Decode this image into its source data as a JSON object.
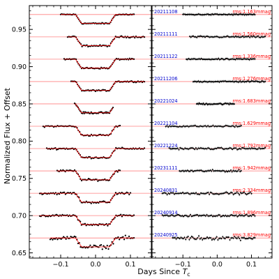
{
  "chart_data": {
    "type": "scatter",
    "ylabel": "Normalized Flux + Offset",
    "xlabel_text": "Days Since ",
    "xlabel_var": "T",
    "xlabel_sub": "c",
    "ylim": [
      0.643,
      0.982
    ],
    "left_panel": {
      "xlim": [
        -0.19,
        0.16
      ],
      "xticks": [
        -0.1,
        0.0,
        0.1
      ],
      "xtick_labels": [
        "−0.1",
        "0.0",
        "0.1"
      ]
    },
    "right_panel": {
      "xlim": [
        -0.19,
        0.16
      ],
      "xticks": [
        -0.1,
        0.0,
        0.1
      ],
      "xtick_labels": [
        "−0.1",
        "0.0",
        "0.1"
      ]
    },
    "yticks": [
      0.65,
      0.7,
      0.75,
      0.8,
      0.85,
      0.9,
      0.95
    ],
    "ytick_labels": [
      "0.65",
      "0.70",
      "0.75",
      "0.80",
      "0.85",
      "0.90",
      "0.95"
    ],
    "transit_depth": 0.012,
    "model_line_color": "#ff0000",
    "baseline_color": "#ff8080",
    "date_color": "#0000cc",
    "rms_color": "#ff0000",
    "point_color": "#000000",
    "series": [
      {
        "date": "20211108",
        "rms": "rms:1.163mmag",
        "offset": 0.97,
        "x_start": -0.1,
        "x_end": 0.11,
        "npts": 70
      },
      {
        "date": "20211111",
        "rms": "rms:1.560mmag",
        "offset": 0.94,
        "x_start": -0.08,
        "x_end": 0.14,
        "npts": 65
      },
      {
        "date": "20211122",
        "rms": "rms:1.336mmag",
        "offset": 0.91,
        "x_start": -0.09,
        "x_end": 0.11,
        "npts": 65
      },
      {
        "date": "20211206",
        "rms": "rms:1.276mmag",
        "offset": 0.88,
        "x_start": -0.07,
        "x_end": 0.14,
        "npts": 70
      },
      {
        "date": "20221024",
        "rms": "rms:1.683mmag",
        "offset": 0.85,
        "x_start": -0.06,
        "x_end": 0.05,
        "npts": 45
      },
      {
        "date": "20221104",
        "rms": "rms:1.629mmag",
        "offset": 0.82,
        "x_start": -0.15,
        "x_end": 0.07,
        "npts": 60
      },
      {
        "date": "20221224",
        "rms": "rms:1.792mmag",
        "offset": 0.79,
        "x_start": -0.14,
        "x_end": 0.14,
        "npts": 80
      },
      {
        "date": "20231111",
        "rms": "rms:1.942mmag",
        "offset": 0.76,
        "x_start": -0.11,
        "x_end": 0.07,
        "npts": 55
      },
      {
        "date": "20240831",
        "rms": "rms:2.334mmag",
        "offset": 0.73,
        "x_start": -0.16,
        "x_end": 0.1,
        "npts": 75
      },
      {
        "date": "20240914",
        "rms": "rms:1.896mmag",
        "offset": 0.7,
        "x_start": -0.16,
        "x_end": 0.11,
        "npts": 80
      },
      {
        "date": "20240925",
        "rms": "rms:3.829mmag",
        "offset": 0.67,
        "x_start": -0.13,
        "x_end": 0.11,
        "npts": 70
      }
    ]
  }
}
